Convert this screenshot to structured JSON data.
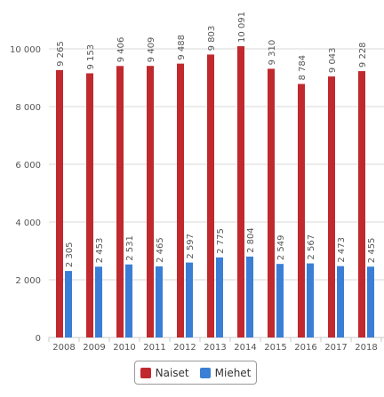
{
  "chart_data": {
    "type": "bar",
    "categories": [
      "2008",
      "2009",
      "2010",
      "2011",
      "2012",
      "2013",
      "2014",
      "2015",
      "2016",
      "2017",
      "2018"
    ],
    "series": [
      {
        "name": "Naiset",
        "color": "#c0292e",
        "values": [
          9265,
          9153,
          9406,
          9409,
          9488,
          9803,
          10091,
          9310,
          8784,
          9043,
          9228
        ],
        "labels": [
          "9 265",
          "9 153",
          "9 406",
          "9 409",
          "9 488",
          "9 803",
          "10 091",
          "9 310",
          "8 784",
          "9 043",
          "9 228"
        ]
      },
      {
        "name": "Miehet",
        "color": "#3a7fd5",
        "values": [
          2305,
          2453,
          2531,
          2465,
          2597,
          2775,
          2804,
          2549,
          2567,
          2473,
          2455
        ],
        "labels": [
          "2 305",
          "2 453",
          "2 531",
          "2 465",
          "2 597",
          "2 775",
          "2 804",
          "2 549",
          "2 567",
          "2 473",
          "2 455"
        ]
      }
    ],
    "yticks": [
      0,
      2000,
      4000,
      6000,
      8000,
      10000
    ],
    "ytick_labels": [
      "0",
      "2 000",
      "4 000",
      "6 000",
      "8 000",
      "10 000"
    ],
    "ylim": [
      0,
      10600
    ],
    "grid": true,
    "legend_position": "bottom-center"
  }
}
